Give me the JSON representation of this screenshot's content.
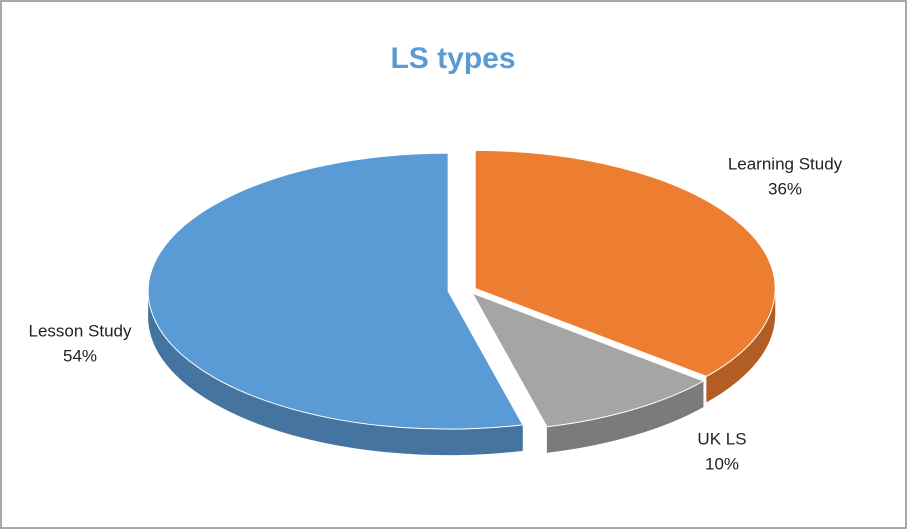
{
  "chart_data": {
    "type": "pie",
    "title": "LS types",
    "categories": [
      "Learning Study",
      "UK LS",
      "Lesson Study"
    ],
    "values": [
      36,
      10,
      54
    ],
    "value_labels": [
      "36%",
      "10%",
      "54%"
    ],
    "colors": [
      "#ed7d31",
      "#a5a5a5",
      "#5b9bd5"
    ]
  }
}
